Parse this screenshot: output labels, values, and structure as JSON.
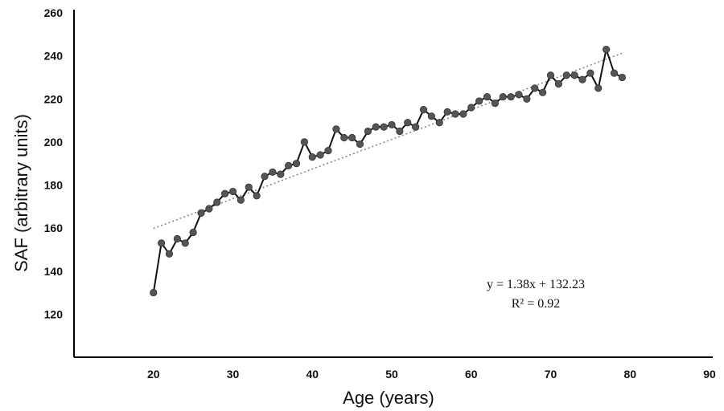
{
  "chart_data": {
    "type": "scatter",
    "xlabel": "Age (years)",
    "ylabel": "SAF (arbitrary units)",
    "xlim": [
      10,
      90
    ],
    "ylim": [
      100,
      260
    ],
    "xticks": [
      20,
      30,
      40,
      50,
      60,
      70,
      80,
      90
    ],
    "yticks": [
      120,
      140,
      160,
      180,
      200,
      220,
      240,
      260
    ],
    "grid": false,
    "legend": "none",
    "series": [
      {
        "marker": "circle",
        "line": "solid",
        "color": "#111111",
        "marker_color": "#555555",
        "x": [
          20,
          21,
          22,
          23,
          24,
          25,
          26,
          27,
          28,
          29,
          30,
          31,
          32,
          33,
          34,
          35,
          36,
          37,
          38,
          39,
          40,
          41,
          42,
          43,
          44,
          45,
          46,
          47,
          48,
          49,
          50,
          51,
          52,
          53,
          54,
          55,
          56,
          57,
          58,
          59,
          60,
          61,
          62,
          63,
          64,
          65,
          66,
          67,
          68,
          69,
          70,
          71,
          72,
          73,
          74,
          75,
          76,
          77,
          78,
          79
        ],
        "y": [
          130,
          153,
          148,
          155,
          153,
          158,
          167,
          169,
          172,
          176,
          177,
          173,
          179,
          175,
          184,
          186,
          185,
          189,
          190,
          200,
          193,
          194,
          196,
          206,
          202,
          202,
          199,
          205,
          207,
          207,
          208,
          205,
          209,
          207,
          215,
          212,
          209,
          214,
          213,
          213,
          216,
          219,
          221,
          218,
          221,
          221,
          222,
          220,
          225,
          223,
          231,
          227,
          231,
          231,
          229,
          232,
          225,
          243,
          232,
          230
        ]
      }
    ],
    "trendline": {
      "style": "dotted",
      "color": "#888888",
      "slope": 1.38,
      "intercept": 132.23,
      "x_range": [
        20,
        79
      ]
    },
    "annotations": [
      "y = 1.38x + 132.23",
      "R² = 0.92"
    ]
  }
}
